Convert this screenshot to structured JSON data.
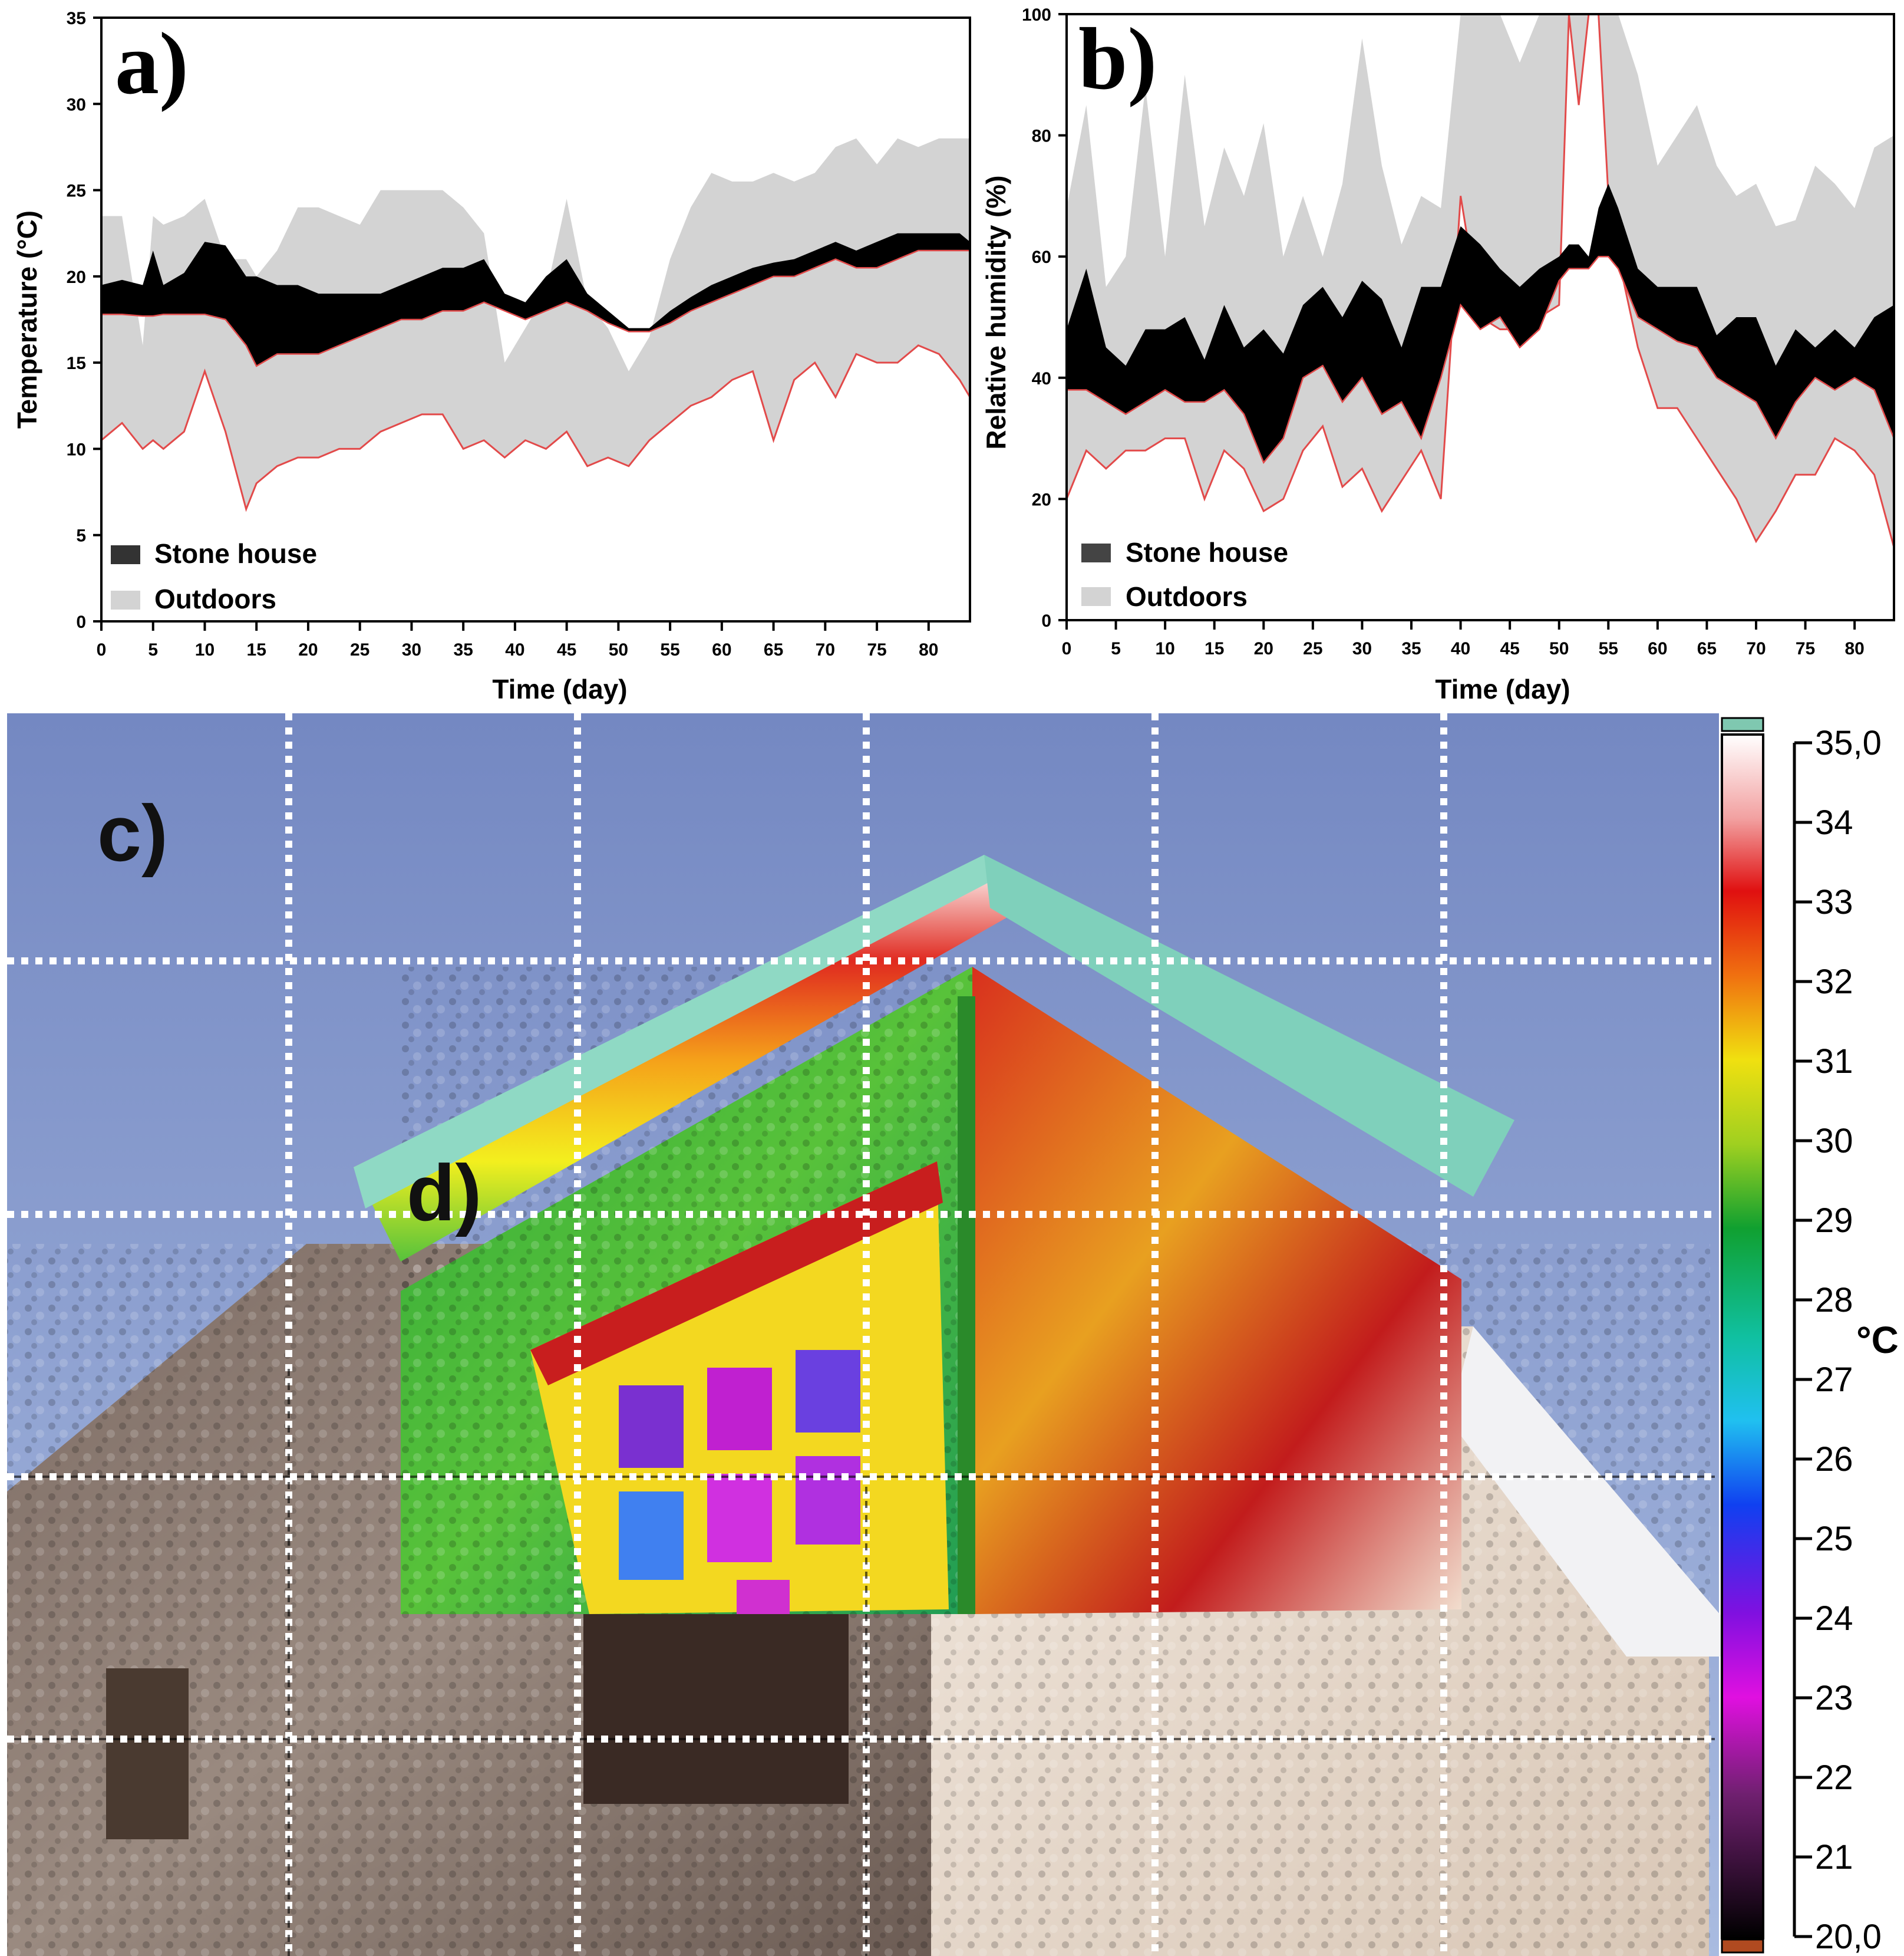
{
  "chart_data": [
    {
      "panel": "a)",
      "type": "area",
      "xlabel": "Time (day)",
      "ylabel": "Temperature (°C)",
      "xlim": [
        0,
        84
      ],
      "ylim": [
        0,
        35
      ],
      "xticks": [
        0,
        5,
        10,
        15,
        20,
        25,
        30,
        35,
        40,
        45,
        50,
        55,
        60,
        65,
        70,
        75,
        80
      ],
      "yticks": [
        0,
        5,
        10,
        15,
        20,
        25,
        30,
        35
      ],
      "legend": [
        "Stone house",
        "Outdoors"
      ],
      "legend_position": "bottom-left",
      "x": [
        0,
        2,
        4,
        5,
        6,
        8,
        10,
        12,
        14,
        15,
        17,
        19,
        21,
        23,
        25,
        27,
        29,
        31,
        33,
        35,
        37,
        39,
        41,
        43,
        45,
        47,
        49,
        51,
        53,
        55,
        57,
        59,
        61,
        63,
        65,
        67,
        69,
        71,
        73,
        75,
        77,
        79,
        81,
        83,
        84
      ],
      "series": [
        {
          "name": "Stone house",
          "max": [
            19.5,
            19.8,
            19.5,
            21.5,
            19.5,
            20.2,
            22.0,
            21.8,
            20.0,
            20.0,
            19.5,
            19.5,
            19.0,
            19.0,
            19.0,
            19.0,
            19.5,
            20.0,
            20.5,
            20.5,
            21.0,
            19.0,
            18.5,
            20.0,
            21.0,
            19.0,
            18.0,
            17.0,
            17.0,
            18.0,
            18.8,
            19.5,
            20.0,
            20.5,
            20.8,
            21.0,
            21.5,
            22.0,
            21.5,
            22.0,
            22.5,
            22.5,
            22.5,
            22.5,
            22.0
          ],
          "min": [
            17.8,
            17.8,
            17.7,
            17.7,
            17.8,
            17.8,
            17.8,
            17.5,
            16.0,
            14.8,
            15.5,
            15.5,
            15.5,
            16.0,
            16.5,
            17.0,
            17.5,
            17.5,
            18.0,
            18.0,
            18.5,
            18.0,
            17.5,
            18.0,
            18.5,
            18.0,
            17.3,
            16.8,
            16.8,
            17.3,
            18.0,
            18.5,
            19.0,
            19.5,
            20.0,
            20.0,
            20.5,
            21.0,
            20.5,
            20.5,
            21.0,
            21.5,
            21.5,
            21.5,
            21.5
          ]
        },
        {
          "name": "Outdoors",
          "max": [
            23.5,
            23.5,
            16.0,
            23.5,
            23.0,
            23.5,
            24.5,
            21.0,
            21.0,
            20.0,
            21.5,
            24.0,
            24.0,
            23.5,
            23.0,
            25.0,
            25.0,
            25.0,
            25.0,
            24.0,
            22.5,
            15.0,
            17.0,
            19.0,
            24.5,
            18.5,
            17.0,
            14.5,
            16.5,
            21.0,
            24.0,
            26.0,
            25.5,
            25.5,
            26.0,
            25.5,
            26.0,
            27.5,
            28.0,
            26.5,
            28.0,
            27.5,
            28.0,
            28.0,
            28.0
          ],
          "min": [
            10.5,
            11.5,
            10.0,
            10.5,
            10.0,
            11.0,
            14.5,
            11.0,
            6.5,
            8.0,
            9.0,
            9.5,
            9.5,
            10.0,
            10.0,
            11.0,
            11.5,
            12.0,
            12.0,
            10.0,
            10.5,
            9.5,
            10.5,
            10.0,
            11.0,
            9.0,
            9.5,
            9.0,
            10.5,
            11.5,
            12.5,
            13.0,
            14.0,
            14.5,
            10.5,
            14.0,
            15.0,
            13.0,
            15.5,
            15.0,
            15.0,
            16.0,
            15.5,
            14.0,
            13.0
          ]
        }
      ]
    },
    {
      "panel": "b)",
      "type": "area",
      "xlabel": "Time (day)",
      "ylabel": "Relative humidity (%)",
      "xlim": [
        0,
        84
      ],
      "ylim": [
        0,
        100
      ],
      "xticks": [
        0,
        5,
        10,
        15,
        20,
        25,
        30,
        35,
        40,
        45,
        50,
        55,
        60,
        65,
        70,
        75,
        80
      ],
      "yticks": [
        0,
        20,
        40,
        60,
        80,
        100
      ],
      "legend": [
        "Stone house",
        "Outdoors"
      ],
      "legend_position": "bottom-left",
      "x": [
        0,
        2,
        4,
        6,
        8,
        10,
        12,
        14,
        16,
        18,
        20,
        22,
        24,
        26,
        28,
        30,
        32,
        34,
        36,
        38,
        40,
        42,
        44,
        46,
        48,
        50,
        51,
        52,
        53,
        54,
        55,
        56,
        58,
        60,
        62,
        64,
        66,
        68,
        70,
        72,
        74,
        76,
        78,
        80,
        82,
        84
      ],
      "series": [
        {
          "name": "Stone house",
          "max": [
            48,
            58,
            45,
            42,
            48,
            48,
            50,
            43,
            52,
            45,
            48,
            44,
            52,
            55,
            50,
            56,
            53,
            45,
            55,
            55,
            65,
            62,
            58,
            55,
            58,
            60,
            62,
            62,
            60,
            68,
            72,
            68,
            58,
            55,
            55,
            55,
            47,
            50,
            50,
            42,
            48,
            45,
            48,
            45,
            50,
            52
          ],
          "min": [
            38,
            38,
            36,
            34,
            36,
            38,
            36,
            36,
            38,
            34,
            26,
            30,
            40,
            42,
            36,
            40,
            34,
            36,
            30,
            40,
            52,
            48,
            50,
            45,
            48,
            56,
            58,
            58,
            58,
            60,
            60,
            58,
            50,
            48,
            46,
            45,
            40,
            38,
            36,
            30,
            36,
            40,
            38,
            40,
            38,
            30
          ]
        },
        {
          "name": "Outdoors",
          "max": [
            68,
            85,
            55,
            60,
            88,
            60,
            90,
            65,
            78,
            70,
            82,
            60,
            70,
            60,
            72,
            96,
            75,
            62,
            70,
            68,
            100,
            100,
            100,
            92,
            100,
            100,
            100,
            100,
            100,
            100,
            100,
            100,
            90,
            75,
            80,
            85,
            75,
            70,
            72,
            65,
            66,
            75,
            72,
            68,
            78,
            80
          ],
          "min": [
            20,
            28,
            25,
            28,
            28,
            30,
            30,
            20,
            28,
            25,
            18,
            20,
            28,
            32,
            22,
            25,
            18,
            23,
            28,
            20,
            70,
            50,
            48,
            48,
            50,
            52,
            100,
            85,
            100,
            100,
            70,
            60,
            45,
            35,
            35,
            30,
            25,
            20,
            13,
            18,
            24,
            24,
            30,
            28,
            24,
            12
          ]
        }
      ]
    },
    {
      "panel": "c)",
      "type": "heatmap",
      "colorbar_ticks": [
        "35,0",
        "34",
        "33",
        "32",
        "31",
        "30",
        "29",
        "28",
        "27",
        "26",
        "25",
        "24",
        "23",
        "22",
        "21",
        "20,0"
      ],
      "colorbar_unit": "°C"
    }
  ],
  "panels": {
    "c_label": "c)",
    "d_label": "d)"
  },
  "colors": {
    "stone_house": "#000000",
    "outdoors": "#d3d3d3",
    "outdoor_min_line": "#e24a4a",
    "sky": "#7e93c6"
  }
}
